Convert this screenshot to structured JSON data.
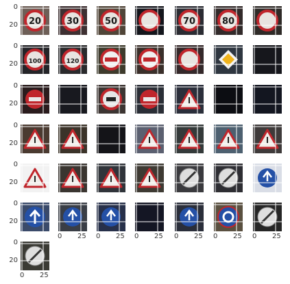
{
  "tick_labels": {
    "y_top": "0",
    "y_mid": "20",
    "x_left": "0",
    "x_right": "25"
  },
  "colors": {
    "gridline": "#ffffff",
    "sign_red": "#c0262c",
    "sign_blue": "#2450a6",
    "sign_yellow": "#f0b31c"
  },
  "thumbnails": [
    {
      "sign": "speed-limit-20",
      "bg": "#6e5f57",
      "text": "20"
    },
    {
      "sign": "speed-limit",
      "bg": "#3e3032",
      "text": "30"
    },
    {
      "sign": "speed-limit",
      "bg": "#504538",
      "text": "50"
    },
    {
      "sign": "speed-limit",
      "bg": "#14161c",
      "text": ""
    },
    {
      "sign": "speed-limit",
      "bg": "#2b2c33",
      "text": "70"
    },
    {
      "sign": "speed-limit",
      "bg": "#322a2a",
      "text": "80"
    },
    {
      "sign": "speed-limit",
      "bg": "#2e2a27",
      "text": ""
    },
    {
      "sign": "speed-limit",
      "bg": "#242428",
      "text": "100"
    },
    {
      "sign": "speed-limit",
      "bg": "#2a2a2c",
      "text": "120"
    },
    {
      "sign": "no-passing",
      "bg": "#3e3b2c",
      "text": ""
    },
    {
      "sign": "no-passing",
      "bg": "#3a2f2a",
      "text": ""
    },
    {
      "sign": "speed-limit",
      "bg": "#34282a",
      "text": ""
    },
    {
      "sign": "priority-road",
      "bg": "#2e3640",
      "text": ""
    },
    {
      "sign": "dark",
      "bg": "#16171c",
      "text": ""
    },
    {
      "sign": "stop",
      "bg": "#2a1c1d",
      "text": ""
    },
    {
      "sign": "dark",
      "bg": "#18191f",
      "text": ""
    },
    {
      "sign": "no-trucks",
      "bg": "#3c3532",
      "text": ""
    },
    {
      "sign": "no-entry",
      "bg": "#2a2e36",
      "text": ""
    },
    {
      "sign": "warning",
      "bg": "#2b2f3b",
      "text": ""
    },
    {
      "sign": "dark",
      "bg": "#0c0d12",
      "text": ""
    },
    {
      "sign": "dark",
      "bg": "#131620",
      "text": ""
    },
    {
      "sign": "warning",
      "bg": "#4a3a30",
      "text": ""
    },
    {
      "sign": "warning",
      "bg": "#3b3329",
      "text": ""
    },
    {
      "sign": "dark",
      "bg": "#141418",
      "text": ""
    },
    {
      "sign": "warning",
      "bg": "#5b6070",
      "text": ""
    },
    {
      "sign": "warning",
      "bg": "#343a3a",
      "text": ""
    },
    {
      "sign": "warning",
      "bg": "#4d6070",
      "text": ""
    },
    {
      "sign": "warning",
      "bg": "#3e3a3a",
      "text": ""
    },
    {
      "sign": "warning",
      "bg": "#f2f2f2",
      "text": ""
    },
    {
      "sign": "warning",
      "bg": "#3a3530",
      "text": ""
    },
    {
      "sign": "warning",
      "bg": "#30343a",
      "text": ""
    },
    {
      "sign": "warning",
      "bg": "#3e3a33",
      "text": ""
    },
    {
      "sign": "end-restriction",
      "bg": "#3a3a3e",
      "text": ""
    },
    {
      "sign": "end-restriction",
      "bg": "#2e2e33",
      "text": ""
    },
    {
      "sign": "blue-circle",
      "bg": "#d9dde6",
      "text": ""
    },
    {
      "sign": "blue-arrow",
      "bg": "#3a4a6a",
      "text": ""
    },
    {
      "sign": "blue-circle",
      "bg": "#3a3e46",
      "text": ""
    },
    {
      "sign": "blue-circle",
      "bg": "#27304a",
      "text": ""
    },
    {
      "sign": "dark",
      "bg": "#141624",
      "text": ""
    },
    {
      "sign": "blue-circle",
      "bg": "#2a2e3a",
      "text": ""
    },
    {
      "sign": "roundabout",
      "bg": "#5a5040",
      "text": ""
    },
    {
      "sign": "end-restriction",
      "bg": "#262626",
      "text": ""
    },
    {
      "sign": "end-restriction",
      "bg": "#3a3a34",
      "text": ""
    }
  ]
}
